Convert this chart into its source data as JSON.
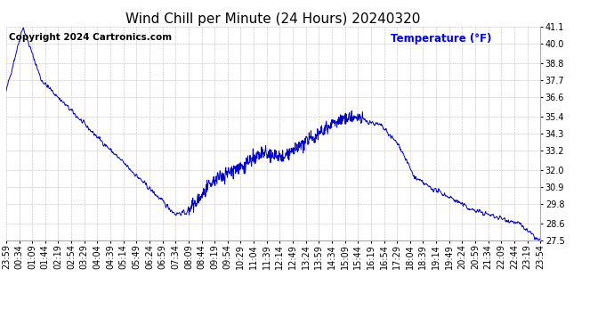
{
  "title": "Wind Chill per Minute (24 Hours) 20240320",
  "ylabel_text": "Temperature (°F)",
  "ylabel_color": "#0000ff",
  "copyright": "Copyright 2024 Cartronics.com",
  "background_color": "#ffffff",
  "line_color": "#0000cc",
  "ylim": [
    27.5,
    41.1
  ],
  "yticks": [
    27.5,
    28.6,
    29.8,
    30.9,
    32.0,
    33.2,
    34.3,
    35.4,
    36.6,
    37.7,
    38.8,
    40.0,
    41.1
  ],
  "xtick_labels": [
    "23:59",
    "00:34",
    "01:09",
    "01:44",
    "02:19",
    "02:54",
    "03:29",
    "04:04",
    "04:39",
    "05:14",
    "05:49",
    "06:24",
    "06:59",
    "07:34",
    "08:09",
    "08:44",
    "09:19",
    "09:54",
    "10:29",
    "11:04",
    "11:39",
    "12:14",
    "12:49",
    "13:24",
    "13:59",
    "14:34",
    "15:09",
    "15:44",
    "16:19",
    "16:54",
    "17:29",
    "18:04",
    "18:39",
    "19:14",
    "19:49",
    "20:24",
    "20:59",
    "21:34",
    "22:09",
    "22:44",
    "23:19",
    "23:54"
  ],
  "grid_color": "#bbbbbb",
  "title_fontsize": 11,
  "tick_fontsize": 7,
  "copyright_fontsize": 7.5,
  "keypoints_x": [
    0,
    45,
    95,
    215,
    455,
    490,
    530,
    570,
    630,
    690,
    750,
    810,
    870,
    930,
    960,
    1010,
    1060,
    1100,
    1140,
    1200,
    1250,
    1320,
    1380,
    1435
  ],
  "keypoints_y": [
    37.0,
    41.1,
    37.7,
    34.8,
    29.2,
    29.3,
    30.5,
    31.5,
    32.2,
    33.0,
    32.8,
    33.8,
    34.8,
    35.4,
    35.2,
    34.8,
    33.5,
    31.5,
    30.9,
    30.2,
    29.5,
    29.0,
    28.6,
    27.5
  ],
  "noise_seed": 42,
  "n_points": 1440,
  "fig_width": 6.9,
  "fig_height": 3.75,
  "fig_dpi": 100
}
